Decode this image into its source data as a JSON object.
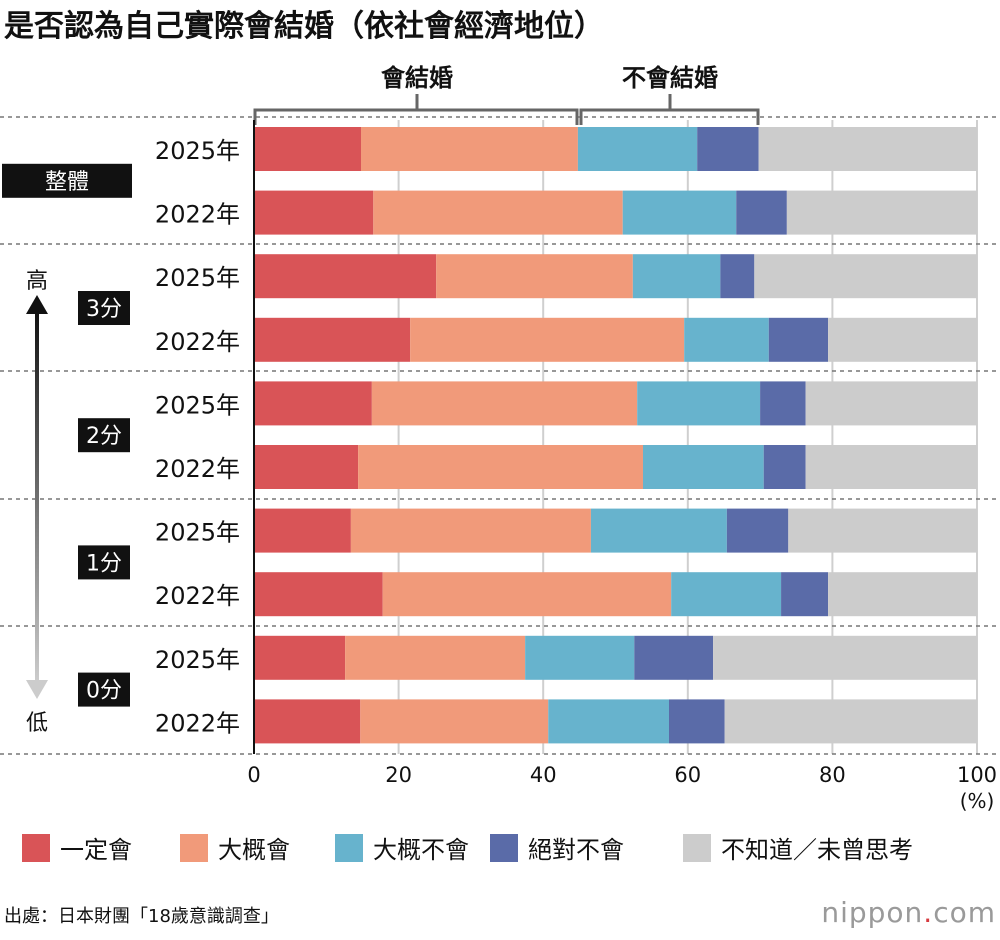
{
  "chart_data": {
    "type": "bar",
    "orientation": "horizontal",
    "stacked": true,
    "title": "是否認為自己實際會結婚（依社會經濟地位）",
    "xlim": [
      0,
      100
    ],
    "xticks": [
      "0",
      "20",
      "40",
      "60",
      "80",
      "100"
    ],
    "xunit": "(%)",
    "grid": true,
    "legend_position": "bottom",
    "bracket_labels": {
      "will_marry": "會結婚",
      "will_not_marry": "不會結婚"
    },
    "axis_arrow": {
      "top": "高",
      "bottom": "低"
    },
    "groups": [
      {
        "label": "整體",
        "rows": [
          0,
          1
        ]
      },
      {
        "label": "3分",
        "rows": [
          2,
          3
        ]
      },
      {
        "label": "2分",
        "rows": [
          4,
          5
        ]
      },
      {
        "label": "1分",
        "rows": [
          6,
          7
        ]
      },
      {
        "label": "0分",
        "rows": [
          8,
          9
        ]
      }
    ],
    "categories": [
      "2025年",
      "2022年",
      "2025年",
      "2022年",
      "2025年",
      "2022年",
      "2025年",
      "2022年",
      "2025年",
      "2022年"
    ],
    "series": [
      {
        "name": "一定會",
        "color": "#d95457",
        "values": [
          14.8,
          16.5,
          25.2,
          21.6,
          16.3,
          14.4,
          13.4,
          17.8,
          12.6,
          14.7
        ]
      },
      {
        "name": "大概會",
        "color": "#f19a7a",
        "values": [
          30.0,
          34.5,
          27.2,
          37.9,
          36.7,
          39.4,
          33.2,
          39.9,
          24.9,
          26.0
        ]
      },
      {
        "name": "大概不會",
        "color": "#67b3cd",
        "values": [
          16.5,
          15.7,
          12.1,
          11.7,
          17.0,
          16.7,
          18.8,
          15.2,
          15.1,
          16.7
        ]
      },
      {
        "name": "絕對不會",
        "color": "#5a6ba8",
        "values": [
          8.5,
          7.0,
          4.7,
          8.2,
          6.3,
          5.8,
          8.5,
          6.5,
          10.9,
          7.7
        ]
      },
      {
        "name": "不知道／未曾思考",
        "color": "#cccccc",
        "values": [
          30.2,
          26.3,
          30.8,
          20.6,
          23.7,
          23.7,
          26.1,
          20.6,
          36.5,
          34.9
        ]
      }
    ]
  },
  "source": "出處：日本財團「18歲意識調查」",
  "logo": "nippon.com"
}
